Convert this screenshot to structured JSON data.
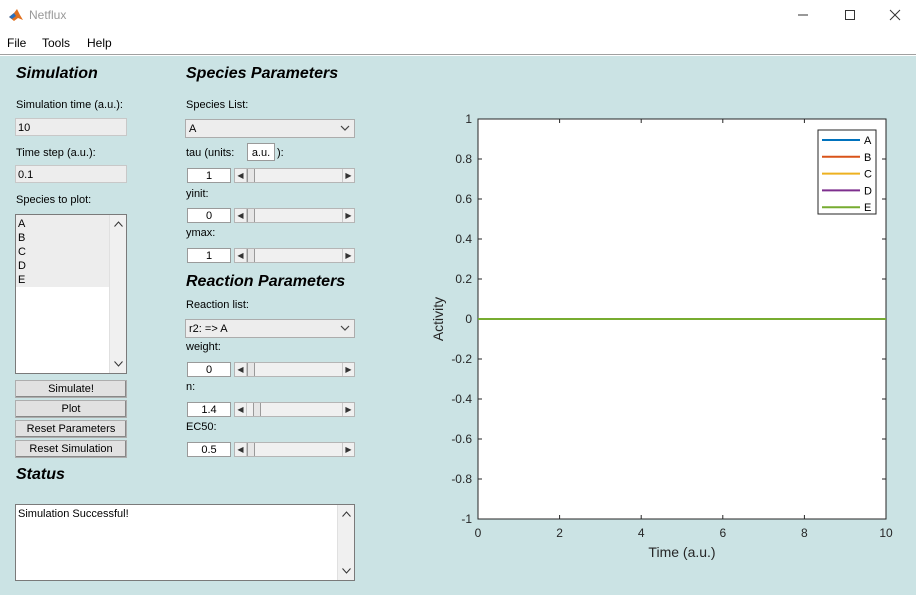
{
  "window": {
    "title": "Netflux"
  },
  "menu": {
    "items": [
      "File",
      "Tools",
      "Help"
    ]
  },
  "simulation": {
    "heading": "Simulation",
    "sim_time_label": "Simulation time (a.u.):",
    "sim_time_value": "10",
    "time_step_label": "Time step (a.u.):",
    "time_step_value": "0.1",
    "species_to_plot_label": "Species to plot:",
    "species": [
      "A",
      "B",
      "C",
      "D",
      "E"
    ],
    "buttons": {
      "simulate": "Simulate!",
      "plot": "Plot",
      "reset_parameters": "Reset Parameters",
      "reset_simulation": "Reset Simulation"
    }
  },
  "species_params": {
    "heading": "Species Parameters",
    "species_list_label": "Species List:",
    "species_selected": "A",
    "tau_label": "tau (units:",
    "tau_units_value": "a.u.",
    "tau_close": "):",
    "tau_value": "1",
    "yinit_label": "yinit:",
    "yinit_value": "0",
    "ymax_label": "ymax:",
    "ymax_value": "1",
    "tau_slider_fraction": 0.0,
    "yinit_slider_fraction": 0.0,
    "ymax_slider_fraction": 0.0
  },
  "reaction_params": {
    "heading": "Reaction Parameters",
    "reaction_list_label": "Reaction list:",
    "reaction_selected": "r2:  => A",
    "weight_label": "weight:",
    "weight_value": "0",
    "n_label": "n:",
    "n_value": "1.4",
    "ec50_label": "EC50:",
    "ec50_value": "0.5",
    "weight_slider_fraction": 0.0,
    "n_slider_fraction": 0.07,
    "ec50_slider_fraction": 0.0
  },
  "status": {
    "heading": "Status",
    "message": "Simulation Successful!"
  },
  "chart_data": {
    "type": "line",
    "title": "",
    "xlabel": "Time (a.u.)",
    "ylabel": "Activity",
    "xlim": [
      0,
      10
    ],
    "ylim": [
      -1,
      1
    ],
    "xticks": [
      "0",
      "2",
      "4",
      "6",
      "8",
      "10"
    ],
    "yticks": [
      "1",
      "0.8",
      "0.6",
      "0.4",
      "0.2",
      "0",
      "-0.2",
      "-0.4",
      "-0.6",
      "-0.8",
      "-1"
    ],
    "legend_position": "top-right",
    "grid": false,
    "series": [
      {
        "name": "A",
        "color": "#0072bd",
        "x": [
          0,
          10
        ],
        "y": [
          0,
          0
        ]
      },
      {
        "name": "B",
        "color": "#d95319",
        "x": [
          0,
          10
        ],
        "y": [
          0,
          0
        ]
      },
      {
        "name": "C",
        "color": "#edb120",
        "x": [
          0,
          10
        ],
        "y": [
          0,
          0
        ]
      },
      {
        "name": "D",
        "color": "#7e2f8e",
        "x": [
          0,
          10
        ],
        "y": [
          0,
          0
        ]
      },
      {
        "name": "E",
        "color": "#77ac30",
        "x": [
          0,
          10
        ],
        "y": [
          0,
          0
        ]
      }
    ]
  }
}
